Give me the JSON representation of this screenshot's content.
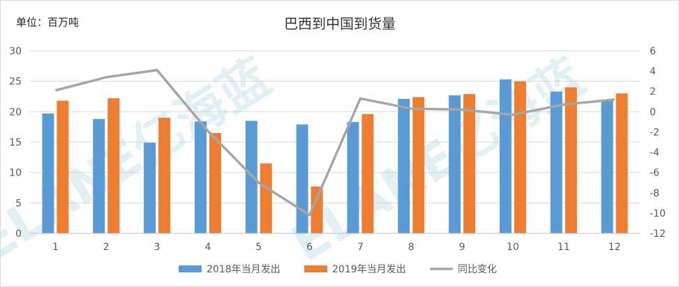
{
  "chart_data": {
    "type": "bar",
    "title": "巴西到中国到货量",
    "unit_label": "单位：百万吨",
    "watermark": "ELANE亿海蓝",
    "categories": [
      "1",
      "2",
      "3",
      "4",
      "5",
      "6",
      "7",
      "8",
      "9",
      "10",
      "11",
      "12"
    ],
    "series": [
      {
        "name": "2018年当月发出",
        "type": "bar",
        "axis": "left",
        "color": "#5b9bd5",
        "values": [
          19.7,
          18.8,
          14.9,
          18.4,
          18.5,
          17.9,
          18.3,
          22.1,
          22.7,
          25.3,
          23.3,
          21.8
        ]
      },
      {
        "name": "2019年当月发出",
        "type": "bar",
        "axis": "left",
        "color": "#ed7d31",
        "values": [
          21.8,
          22.2,
          19.0,
          16.5,
          11.5,
          7.7,
          19.6,
          22.4,
          22.9,
          25.0,
          24.0,
          23.0
        ]
      },
      {
        "name": "同比变化",
        "type": "line",
        "axis": "right",
        "color": "#a5a5a5",
        "values": [
          2.1,
          3.4,
          4.1,
          -1.9,
          -7.0,
          -10.2,
          1.3,
          0.3,
          0.2,
          -0.3,
          0.7,
          1.2
        ]
      }
    ],
    "ylim_left": [
      0,
      30
    ],
    "yticks_left": [
      "0",
      "5",
      "10",
      "15",
      "20",
      "25",
      "30"
    ],
    "ylim_right": [
      -12,
      6
    ],
    "yticks_right": [
      "-12",
      "-10",
      "-8",
      "-6",
      "-4",
      "-2",
      "0",
      "2",
      "4",
      "6"
    ],
    "grid": true,
    "legend_position": "bottom"
  }
}
